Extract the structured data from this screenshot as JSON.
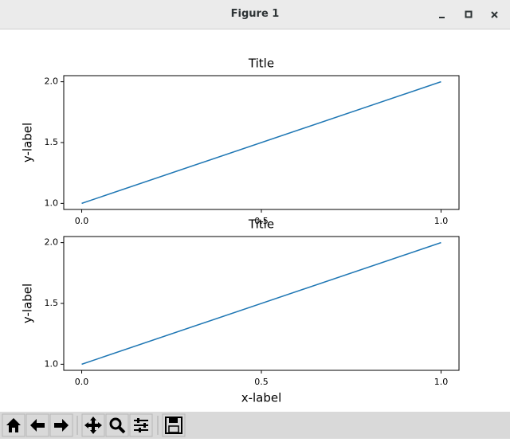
{
  "window": {
    "title": "Figure 1"
  },
  "chart_data": [
    {
      "type": "line",
      "title": "Title",
      "ylabel": "y-label",
      "x": [
        0,
        1
      ],
      "series": [
        {
          "color": "#1f77b4",
          "values": [
            1,
            2
          ]
        }
      ],
      "xlim": [
        -0.05,
        1.05
      ],
      "ylim": [
        0.95,
        2.05
      ],
      "xticks": [
        {
          "value": 0,
          "label": "0.0"
        },
        {
          "value": 0.5,
          "label": "0.5"
        },
        {
          "value": 1,
          "label": "1.0"
        }
      ],
      "yticks": [
        {
          "value": 1,
          "label": "1.0"
        },
        {
          "value": 1.5,
          "label": "1.5"
        },
        {
          "value": 2,
          "label": "2.0"
        }
      ]
    },
    {
      "type": "line",
      "title": "Title",
      "xlabel": "x-label",
      "ylabel": "y-label",
      "x": [
        0,
        1
      ],
      "series": [
        {
          "color": "#1f77b4",
          "values": [
            1,
            2
          ]
        }
      ],
      "xlim": [
        -0.05,
        1.05
      ],
      "ylim": [
        0.95,
        2.05
      ],
      "xticks": [
        {
          "value": 0,
          "label": "0.0"
        },
        {
          "value": 0.5,
          "label": "0.5"
        },
        {
          "value": 1,
          "label": "1.0"
        }
      ],
      "yticks": [
        {
          "value": 1,
          "label": "1.0"
        },
        {
          "value": 1.5,
          "label": "1.5"
        },
        {
          "value": 2,
          "label": "2.0"
        }
      ]
    }
  ]
}
